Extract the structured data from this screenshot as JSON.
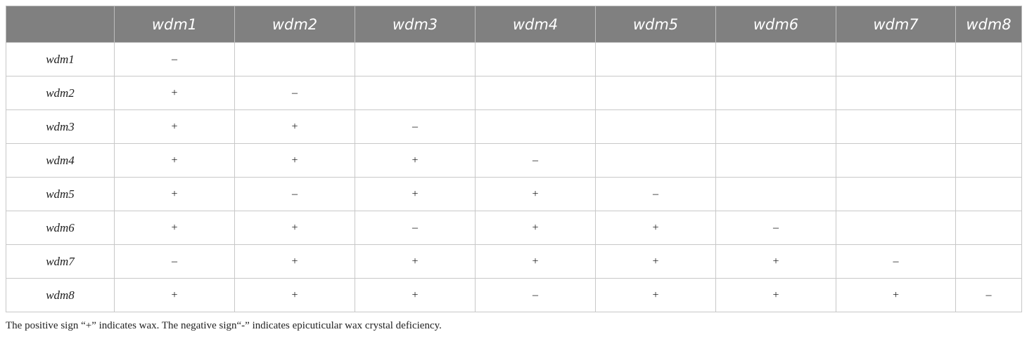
{
  "table": {
    "header": [
      "wdm1",
      "wdm2",
      "wdm3",
      "wdm4",
      "wdm5",
      "wdm6",
      "wdm7",
      "wdm8"
    ],
    "rows": [
      {
        "label": "wdm1",
        "cells": [
          "–"
        ]
      },
      {
        "label": "wdm2",
        "cells": [
          "+",
          "–"
        ]
      },
      {
        "label": "wdm3",
        "cells": [
          "+",
          "+",
          "–"
        ]
      },
      {
        "label": "wdm4",
        "cells": [
          "+",
          "+",
          "+",
          "–"
        ]
      },
      {
        "label": "wdm5",
        "cells": [
          "+",
          "–",
          "+",
          "+",
          "–"
        ]
      },
      {
        "label": "wdm6",
        "cells": [
          "+",
          "+",
          "–",
          "+",
          "+",
          "–"
        ]
      },
      {
        "label": "wdm7",
        "cells": [
          "–",
          "+",
          "+",
          "+",
          "+",
          "+",
          "–"
        ]
      },
      {
        "label": "wdm8",
        "cells": [
          "+",
          "+",
          "+",
          "–",
          "+",
          "+",
          "+",
          "–"
        ]
      }
    ]
  },
  "footnote": "The positive sign “+” indicates wax. The negative sign“-” indicates epicuticular wax crystal deficiency."
}
